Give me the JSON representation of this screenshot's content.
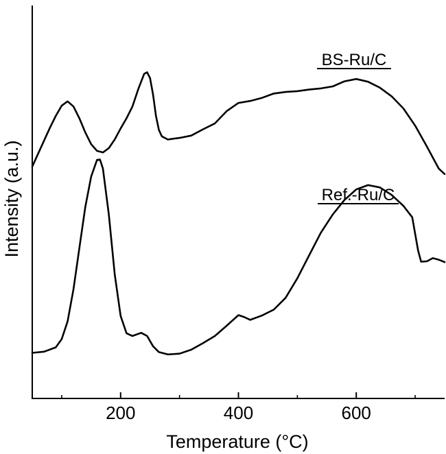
{
  "chart_data": {
    "type": "line",
    "xlabel": "Temperature (°C)",
    "ylabel": "Intensity (a.u.)",
    "xlim": [
      50,
      750
    ],
    "ylim": [
      0,
      1
    ],
    "xticks": [
      200,
      400,
      600
    ],
    "x_minor_ticks": [
      100,
      300,
      500,
      700
    ],
    "y_ticks_shown": false,
    "series": [
      {
        "name": "BS-Ru/C",
        "color": "#000000",
        "points": [
          [
            50,
            0.59
          ],
          [
            60,
            0.623
          ],
          [
            70,
            0.656
          ],
          [
            80,
            0.689
          ],
          [
            90,
            0.719
          ],
          [
            100,
            0.745
          ],
          [
            110,
            0.756
          ],
          [
            120,
            0.743
          ],
          [
            130,
            0.713
          ],
          [
            140,
            0.677
          ],
          [
            150,
            0.647
          ],
          [
            160,
            0.63
          ],
          [
            170,
            0.626
          ],
          [
            180,
            0.637
          ],
          [
            190,
            0.659
          ],
          [
            200,
            0.687
          ],
          [
            210,
            0.713
          ],
          [
            220,
            0.743
          ],
          [
            230,
            0.787
          ],
          [
            240,
            0.826
          ],
          [
            245,
            0.83
          ],
          [
            250,
            0.815
          ],
          [
            255,
            0.774
          ],
          [
            260,
            0.719
          ],
          [
            265,
            0.683
          ],
          [
            270,
            0.667
          ],
          [
            280,
            0.659
          ],
          [
            300,
            0.663
          ],
          [
            320,
            0.669
          ],
          [
            340,
            0.685
          ],
          [
            360,
            0.7
          ],
          [
            380,
            0.731
          ],
          [
            400,
            0.752
          ],
          [
            420,
            0.757
          ],
          [
            440,
            0.765
          ],
          [
            460,
            0.776
          ],
          [
            480,
            0.78
          ],
          [
            500,
            0.782
          ],
          [
            520,
            0.786
          ],
          [
            540,
            0.789
          ],
          [
            560,
            0.794
          ],
          [
            580,
            0.807
          ],
          [
            600,
            0.813
          ],
          [
            620,
            0.806
          ],
          [
            640,
            0.791
          ],
          [
            660,
            0.769
          ],
          [
            680,
            0.738
          ],
          [
            700,
            0.694
          ],
          [
            720,
            0.641
          ],
          [
            740,
            0.585
          ],
          [
            750,
            0.571
          ]
        ]
      },
      {
        "name": "Ref.-Ru/C",
        "color": "#000000",
        "points": [
          [
            50,
            0.116
          ],
          [
            70,
            0.119
          ],
          [
            90,
            0.13
          ],
          [
            100,
            0.151
          ],
          [
            110,
            0.196
          ],
          [
            120,
            0.278
          ],
          [
            130,
            0.383
          ],
          [
            140,
            0.487
          ],
          [
            150,
            0.565
          ],
          [
            160,
            0.607
          ],
          [
            165,
            0.608
          ],
          [
            170,
            0.585
          ],
          [
            180,
            0.468
          ],
          [
            190,
            0.316
          ],
          [
            200,
            0.21
          ],
          [
            210,
            0.166
          ],
          [
            220,
            0.159
          ],
          [
            235,
            0.167
          ],
          [
            245,
            0.159
          ],
          [
            255,
            0.133
          ],
          [
            265,
            0.118
          ],
          [
            280,
            0.112
          ],
          [
            300,
            0.114
          ],
          [
            320,
            0.124
          ],
          [
            340,
            0.141
          ],
          [
            360,
            0.159
          ],
          [
            380,
            0.185
          ],
          [
            400,
            0.212
          ],
          [
            410,
            0.207
          ],
          [
            420,
            0.2
          ],
          [
            440,
            0.211
          ],
          [
            460,
            0.226
          ],
          [
            480,
            0.256
          ],
          [
            500,
            0.306
          ],
          [
            520,
            0.364
          ],
          [
            540,
            0.422
          ],
          [
            560,
            0.468
          ],
          [
            580,
            0.505
          ],
          [
            600,
            0.532
          ],
          [
            620,
            0.543
          ],
          [
            640,
            0.537
          ],
          [
            660,
            0.518
          ],
          [
            680,
            0.49
          ],
          [
            695,
            0.461
          ],
          [
            705,
            0.376
          ],
          [
            710,
            0.348
          ],
          [
            720,
            0.349
          ],
          [
            730,
            0.357
          ],
          [
            740,
            0.353
          ],
          [
            750,
            0.347
          ]
        ]
      }
    ]
  }
}
